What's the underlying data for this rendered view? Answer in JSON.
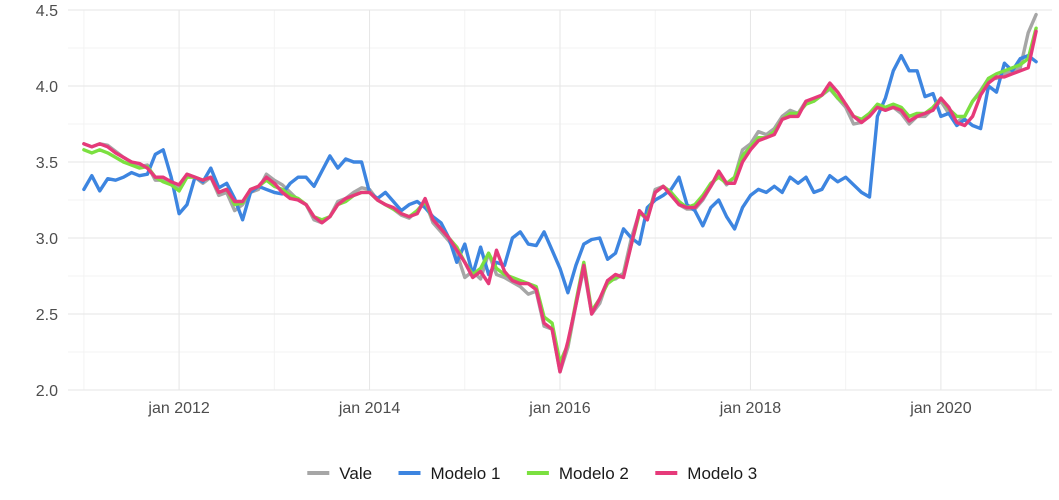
{
  "chart_data": {
    "type": "line",
    "title": "",
    "xlabel": "",
    "ylabel": "",
    "ylim": [
      2.0,
      4.5
    ],
    "xlim": [
      "2010-11",
      "2021-03"
    ],
    "y_ticks": [
      "2.0",
      "2.5",
      "3.0",
      "3.5",
      "4.0",
      "4.5"
    ],
    "x_ticks": [
      {
        "date": "2012-01",
        "label": "jan 2012"
      },
      {
        "date": "2014-01",
        "label": "jan 2014"
      },
      {
        "date": "2016-01",
        "label": "jan 2016"
      },
      {
        "date": "2018-01",
        "label": "jan 2018"
      },
      {
        "date": "2020-01",
        "label": "jan 2020"
      }
    ],
    "grid": true,
    "legend_position": "bottom",
    "start_date": "2011-01",
    "series": [
      {
        "name": "Vale",
        "color": "#a6a6a6",
        "values": [
          3.62,
          3.6,
          3.62,
          3.61,
          3.57,
          3.53,
          3.5,
          3.47,
          3.48,
          3.38,
          3.38,
          3.38,
          3.32,
          3.42,
          3.4,
          3.36,
          3.4,
          3.28,
          3.3,
          3.18,
          3.22,
          3.3,
          3.32,
          3.42,
          3.38,
          3.35,
          3.3,
          3.25,
          3.22,
          3.12,
          3.1,
          3.14,
          3.24,
          3.26,
          3.3,
          3.33,
          3.32,
          3.25,
          3.22,
          3.19,
          3.15,
          3.13,
          3.18,
          3.24,
          3.1,
          3.04,
          2.98,
          2.9,
          2.74,
          2.78,
          2.73,
          2.9,
          2.76,
          2.74,
          2.71,
          2.68,
          2.63,
          2.65,
          2.42,
          2.4,
          2.12,
          2.28,
          2.56,
          2.8,
          2.5,
          2.57,
          2.72,
          2.73,
          2.77,
          3.0,
          3.17,
          3.12,
          3.32,
          3.34,
          3.3,
          3.22,
          3.19,
          3.19,
          3.25,
          3.34,
          3.42,
          3.35,
          3.4,
          3.58,
          3.62,
          3.7,
          3.68,
          3.72,
          3.8,
          3.84,
          3.82,
          3.9,
          3.9,
          3.94,
          3.98,
          3.92,
          3.86,
          3.75,
          3.76,
          3.82,
          3.86,
          3.84,
          3.86,
          3.82,
          3.75,
          3.8,
          3.8,
          3.85,
          3.9,
          3.82,
          3.76,
          3.8,
          3.9,
          3.97,
          4.05,
          4.05,
          4.08,
          4.1,
          4.12,
          4.35,
          4.47
        ]
      },
      {
        "name": "Modelo 1",
        "color": "#3d85e0",
        "values": [
          3.32,
          3.41,
          3.31,
          3.39,
          3.38,
          3.4,
          3.43,
          3.41,
          3.42,
          3.55,
          3.58,
          3.4,
          3.16,
          3.22,
          3.4,
          3.37,
          3.46,
          3.33,
          3.36,
          3.26,
          3.12,
          3.3,
          3.34,
          3.32,
          3.3,
          3.29,
          3.36,
          3.4,
          3.4,
          3.34,
          3.44,
          3.54,
          3.46,
          3.52,
          3.5,
          3.5,
          3.3,
          3.26,
          3.3,
          3.24,
          3.18,
          3.22,
          3.24,
          3.2,
          3.14,
          3.1,
          3.0,
          2.84,
          2.96,
          2.76,
          2.94,
          2.76,
          2.84,
          2.82,
          3.0,
          3.04,
          2.96,
          2.95,
          3.04,
          2.92,
          2.8,
          2.64,
          2.82,
          2.96,
          2.99,
          3.0,
          2.86,
          2.9,
          3.06,
          3.0,
          2.96,
          3.2,
          3.25,
          3.28,
          3.32,
          3.4,
          3.22,
          3.18,
          3.08,
          3.2,
          3.25,
          3.14,
          3.06,
          3.2,
          3.28,
          3.32,
          3.3,
          3.34,
          3.3,
          3.4,
          3.36,
          3.4,
          3.3,
          3.32,
          3.41,
          3.37,
          3.4,
          3.35,
          3.3,
          3.27,
          3.8,
          3.92,
          4.1,
          4.2,
          4.1,
          4.1,
          3.93,
          3.95,
          3.8,
          3.82,
          3.74,
          3.78,
          3.74,
          3.72,
          4.0,
          3.96,
          4.15,
          4.1,
          4.18,
          4.2,
          4.16
        ]
      },
      {
        "name": "Modelo 2",
        "color": "#7be040",
        "values": [
          3.58,
          3.56,
          3.58,
          3.56,
          3.53,
          3.5,
          3.48,
          3.46,
          3.47,
          3.4,
          3.37,
          3.35,
          3.31,
          3.4,
          3.4,
          3.38,
          3.4,
          3.3,
          3.32,
          3.22,
          3.23,
          3.32,
          3.34,
          3.38,
          3.34,
          3.32,
          3.28,
          3.26,
          3.22,
          3.14,
          3.12,
          3.14,
          3.22,
          3.24,
          3.28,
          3.3,
          3.3,
          3.25,
          3.22,
          3.19,
          3.16,
          3.14,
          3.18,
          3.24,
          3.12,
          3.06,
          3.0,
          2.94,
          2.84,
          2.76,
          2.8,
          2.9,
          2.8,
          2.76,
          2.74,
          2.72,
          2.7,
          2.68,
          2.48,
          2.44,
          2.18,
          2.3,
          2.58,
          2.84,
          2.52,
          2.6,
          2.7,
          2.74,
          2.75,
          2.96,
          3.16,
          3.14,
          3.3,
          3.34,
          3.3,
          3.24,
          3.2,
          3.22,
          3.28,
          3.36,
          3.4,
          3.36,
          3.4,
          3.54,
          3.6,
          3.66,
          3.66,
          3.7,
          3.78,
          3.82,
          3.82,
          3.88,
          3.9,
          3.94,
          3.99,
          3.92,
          3.88,
          3.8,
          3.78,
          3.82,
          3.88,
          3.86,
          3.88,
          3.86,
          3.8,
          3.82,
          3.82,
          3.86,
          3.92,
          3.85,
          3.8,
          3.8,
          3.9,
          3.96,
          4.05,
          4.08,
          4.1,
          4.12,
          4.14,
          4.18,
          4.38
        ]
      },
      {
        "name": "Modelo 3",
        "color": "#e63a7a",
        "values": [
          3.62,
          3.6,
          3.62,
          3.6,
          3.56,
          3.53,
          3.5,
          3.49,
          3.46,
          3.4,
          3.4,
          3.37,
          3.35,
          3.42,
          3.4,
          3.38,
          3.4,
          3.3,
          3.32,
          3.24,
          3.24,
          3.32,
          3.34,
          3.4,
          3.36,
          3.3,
          3.26,
          3.25,
          3.22,
          3.14,
          3.1,
          3.14,
          3.22,
          3.26,
          3.28,
          3.3,
          3.3,
          3.25,
          3.22,
          3.2,
          3.16,
          3.14,
          3.16,
          3.26,
          3.12,
          3.06,
          3.0,
          2.92,
          2.84,
          2.74,
          2.78,
          2.7,
          2.92,
          2.78,
          2.72,
          2.7,
          2.7,
          2.66,
          2.44,
          2.4,
          2.12,
          2.32,
          2.56,
          2.82,
          2.5,
          2.6,
          2.72,
          2.76,
          2.74,
          2.96,
          3.18,
          3.12,
          3.3,
          3.34,
          3.28,
          3.22,
          3.2,
          3.2,
          3.26,
          3.34,
          3.44,
          3.36,
          3.36,
          3.5,
          3.58,
          3.64,
          3.66,
          3.68,
          3.78,
          3.8,
          3.8,
          3.9,
          3.92,
          3.94,
          4.02,
          3.96,
          3.88,
          3.8,
          3.76,
          3.8,
          3.86,
          3.84,
          3.86,
          3.84,
          3.77,
          3.8,
          3.82,
          3.84,
          3.92,
          3.86,
          3.76,
          3.74,
          3.8,
          3.94,
          4.02,
          4.06,
          4.06,
          4.08,
          4.1,
          4.12,
          4.36
        ]
      }
    ]
  }
}
